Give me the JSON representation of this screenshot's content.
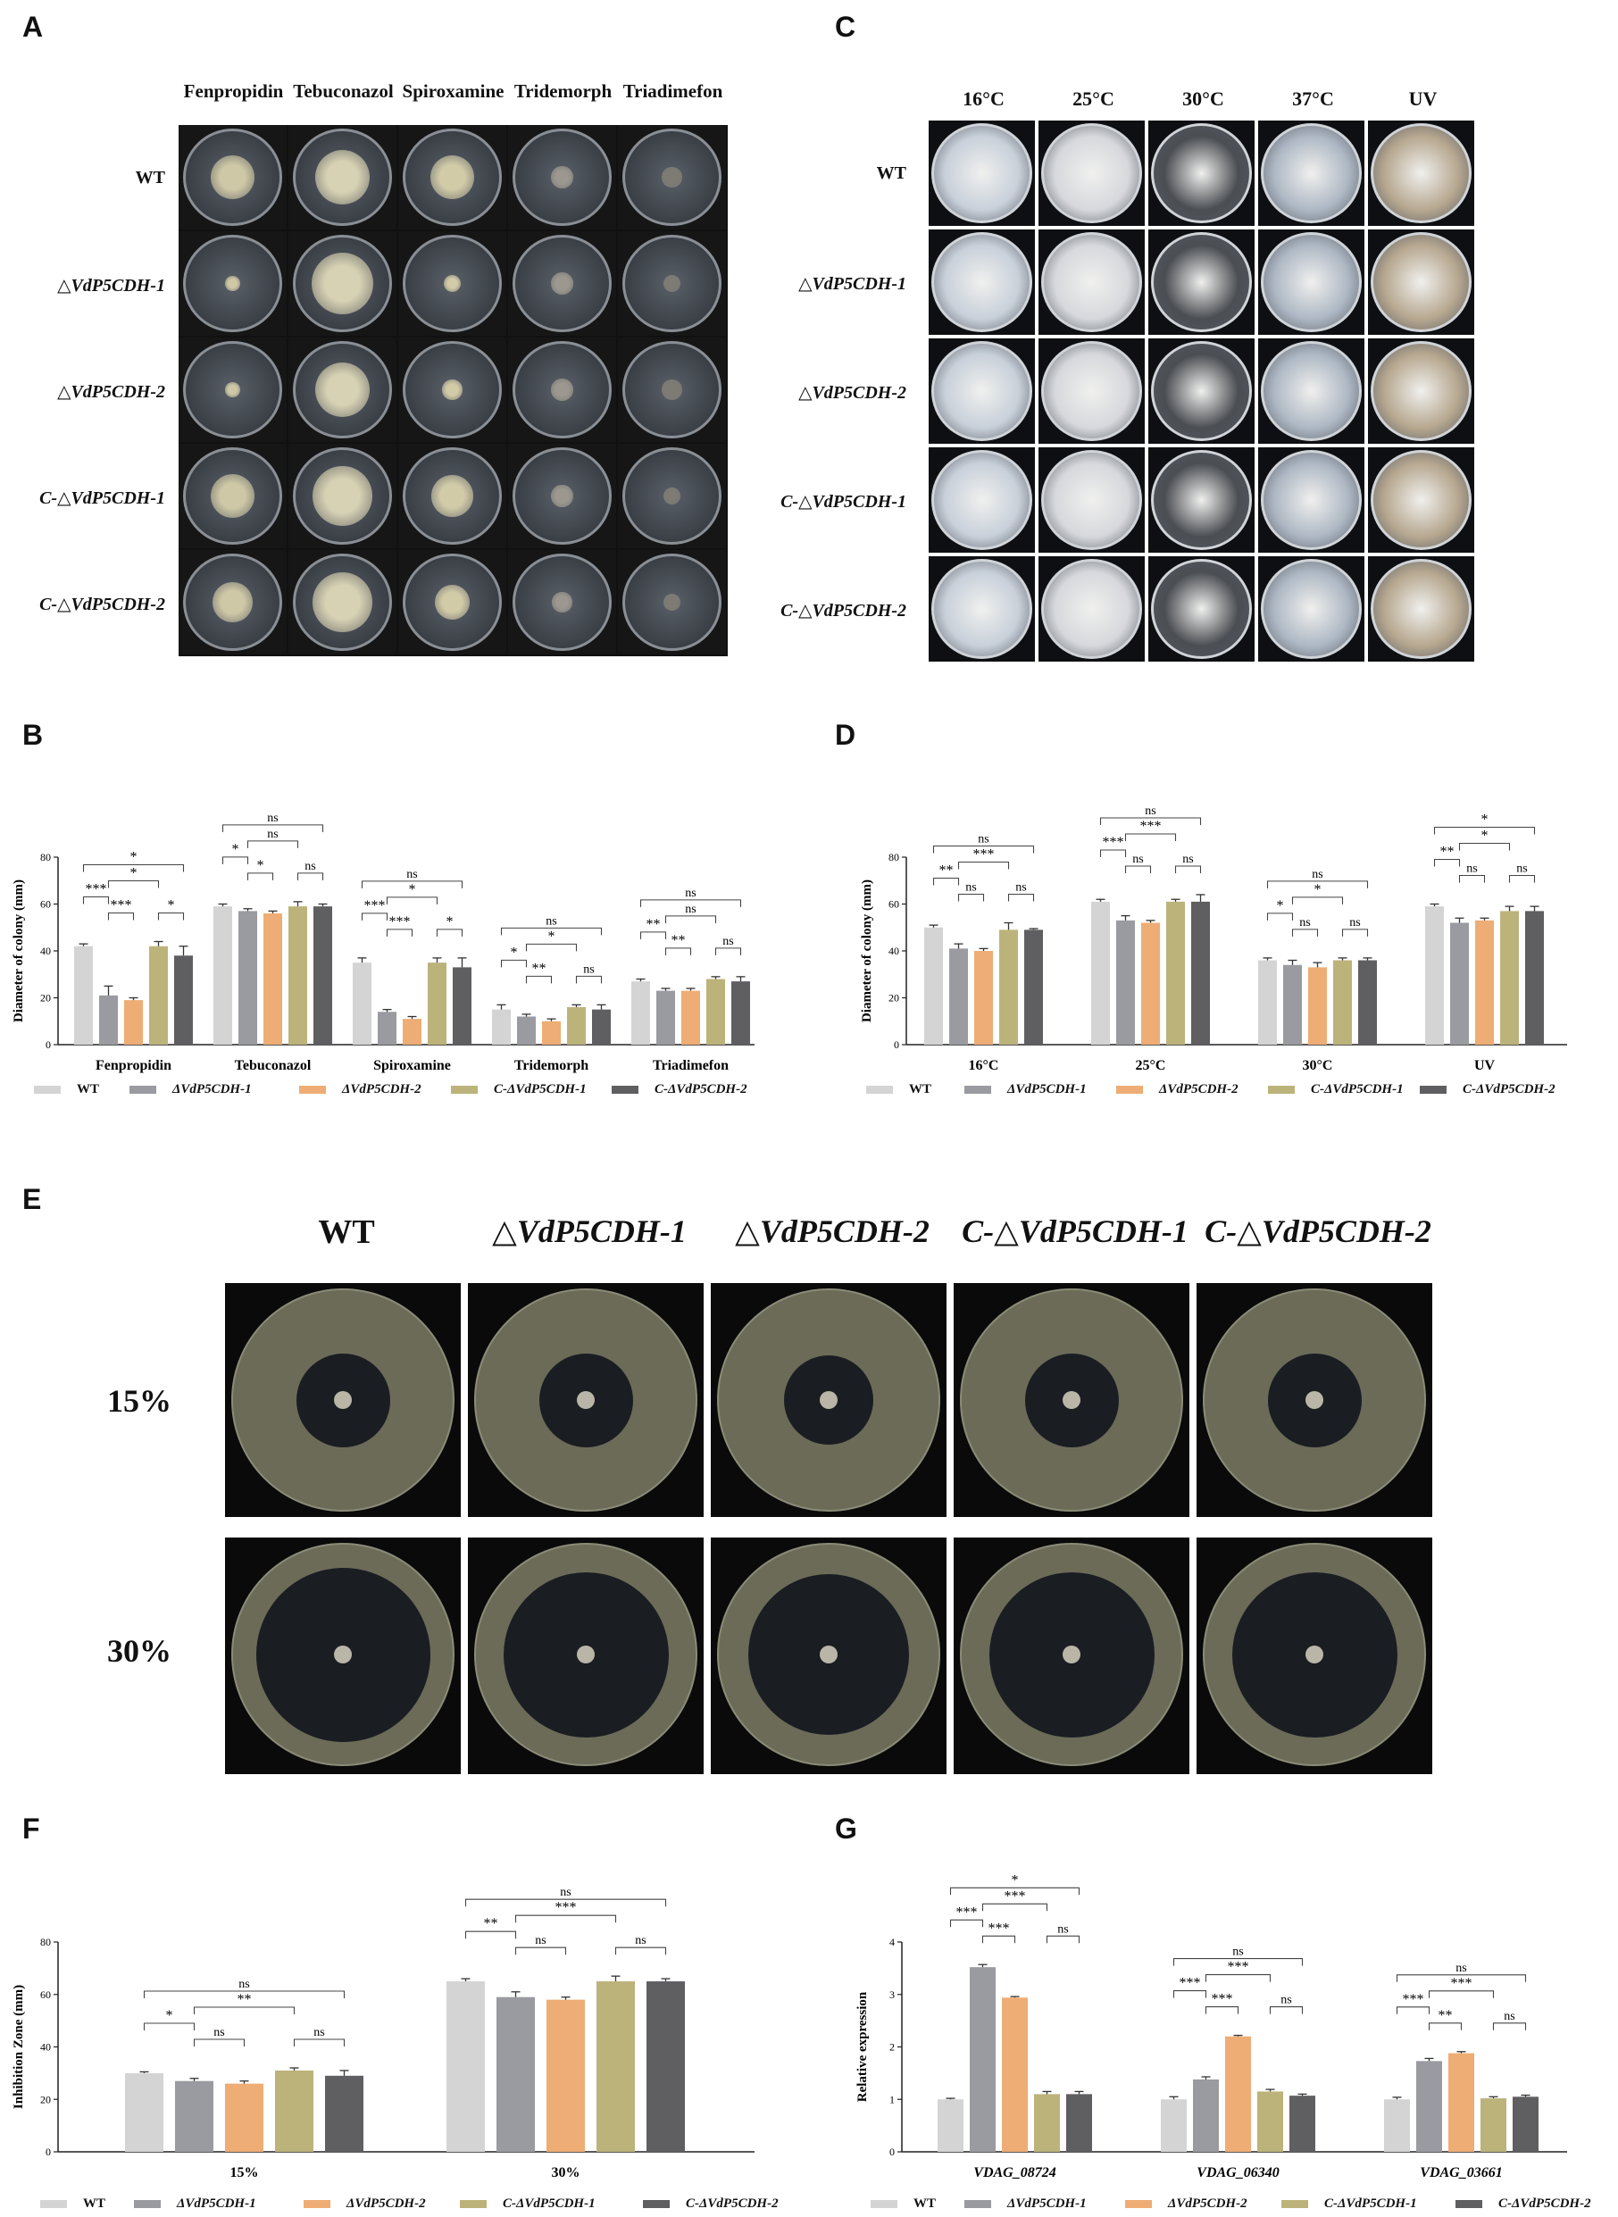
{
  "panels": {
    "A": {
      "letter": "A",
      "columns": [
        "Fenpropidin",
        "Tebuconazol",
        "Spiroxamine",
        "Tridemorph",
        "Triadimefon"
      ],
      "rows": [
        "WT",
        "△VdP5CDH-1",
        "△VdP5CDH-2",
        "C-△VdP5CDH-1",
        "C-△VdP5CDH-2"
      ]
    },
    "C": {
      "letter": "C",
      "columns": [
        "16°C",
        "25°C",
        "30°C",
        "37°C",
        "UV"
      ],
      "rows": [
        "WT",
        "△VdP5CDH-1",
        "△VdP5CDH-2",
        "C-△VdP5CDH-1",
        "C-△VdP5CDH-2"
      ]
    },
    "E": {
      "letter": "E",
      "columns": [
        "WT",
        "△VdP5CDH-1",
        "△VdP5CDH-2",
        "C-△VdP5CDH-1",
        "C-△VdP5CDH-2"
      ],
      "rows": [
        "15%",
        "30%"
      ]
    },
    "B": {
      "letter": "B"
    },
    "D": {
      "letter": "D"
    },
    "F": {
      "letter": "F"
    },
    "G": {
      "letter": "G"
    }
  },
  "legend": {
    "items": [
      "WT",
      "ΔVdP5CDH-1",
      "ΔVdP5CDH-2",
      "C-ΔVdP5CDH-1",
      "C-ΔVdP5CDH-2"
    ],
    "colors": [
      "#d4d4d4",
      "#9a9ba0",
      "#eead75",
      "#bcb37b",
      "#5f5f62"
    ]
  },
  "chart_data": [
    {
      "panel": "B",
      "type": "bar",
      "ylabel": "Diameter of colony (mm)",
      "ylim": [
        0,
        80
      ],
      "yticks": [
        "0",
        "20",
        "40",
        "60",
        "80"
      ],
      "categories": [
        "Fenpropidin",
        "Tebuconazol",
        "Spiroxamine",
        "Tridemorph",
        "Triadimefon"
      ],
      "series": [
        {
          "name": "WT",
          "values": [
            42,
            59,
            35,
            15,
            27
          ],
          "errors": [
            1,
            1,
            2,
            2,
            1
          ]
        },
        {
          "name": "ΔVdP5CDH-1",
          "values": [
            21,
            57,
            14,
            12,
            23
          ],
          "errors": [
            4,
            1,
            1,
            1,
            1
          ]
        },
        {
          "name": "ΔVdP5CDH-2",
          "values": [
            19,
            56,
            11,
            10,
            23
          ],
          "errors": [
            1,
            1,
            1,
            1,
            1
          ]
        },
        {
          "name": "C-ΔVdP5CDH-1",
          "values": [
            42,
            59,
            35,
            16,
            28
          ],
          "errors": [
            2,
            2,
            2,
            1,
            1
          ]
        },
        {
          "name": "C-ΔVdP5CDH-2",
          "values": [
            38,
            59,
            33,
            15,
            27
          ],
          "errors": [
            4,
            1,
            4,
            2,
            2
          ]
        }
      ],
      "annotations": [
        "*",
        "***",
        "*",
        "***",
        "*",
        "ns",
        "*",
        "ns",
        "*",
        "ns",
        "ns",
        "***",
        "*",
        "***",
        "*",
        "ns",
        "*",
        "*",
        "**",
        "ns",
        "ns",
        "**",
        "ns",
        "**",
        "ns"
      ]
    },
    {
      "panel": "D",
      "type": "bar",
      "ylabel": "Diameter of colony (mm)",
      "ylim": [
        0,
        80
      ],
      "yticks": [
        "0",
        "20",
        "40",
        "60",
        "80"
      ],
      "categories": [
        "16°C",
        "25°C",
        "30°C",
        "UV"
      ],
      "series": [
        {
          "name": "WT",
          "values": [
            50,
            61,
            36,
            59
          ],
          "errors": [
            1,
            1,
            1,
            1
          ]
        },
        {
          "name": "ΔVdP5CDH-1",
          "values": [
            41,
            53,
            34,
            52
          ],
          "errors": [
            2,
            2,
            2,
            2
          ]
        },
        {
          "name": "ΔVdP5CDH-2",
          "values": [
            40,
            52,
            33,
            53
          ],
          "errors": [
            1,
            1,
            2,
            1
          ]
        },
        {
          "name": "C-ΔVdP5CDH-1",
          "values": [
            49,
            61,
            36,
            57
          ],
          "errors": [
            3,
            1,
            1,
            2
          ]
        },
        {
          "name": "C-ΔVdP5CDH-2",
          "values": [
            49,
            61,
            36,
            57
          ],
          "errors": [
            0.5,
            3,
            1,
            2
          ]
        }
      ],
      "annotations": [
        "ns",
        "**",
        "***",
        "ns",
        "ns",
        "ns",
        "***",
        "***",
        "ns",
        "ns",
        "ns",
        "*",
        "*",
        "ns",
        "ns",
        "*",
        "**",
        "*",
        "ns",
        "ns"
      ]
    },
    {
      "panel": "F",
      "type": "bar",
      "ylabel": "Inhibition Zone (mm)",
      "ylim": [
        0,
        80
      ],
      "yticks": [
        "0",
        "20",
        "40",
        "60",
        "80"
      ],
      "categories": [
        "15%",
        "30%"
      ],
      "series": [
        {
          "name": "WT",
          "values": [
            30,
            65
          ],
          "errors": [
            0.5,
            1
          ]
        },
        {
          "name": "ΔVdP5CDH-1",
          "values": [
            27,
            59
          ],
          "errors": [
            1,
            2
          ]
        },
        {
          "name": "ΔVdP5CDH-2",
          "values": [
            26,
            58
          ],
          "errors": [
            1,
            1
          ]
        },
        {
          "name": "C-ΔVdP5CDH-1",
          "values": [
            31,
            65
          ],
          "errors": [
            1,
            2
          ]
        },
        {
          "name": "C-ΔVdP5CDH-2",
          "values": [
            29,
            65
          ],
          "errors": [
            2,
            1
          ]
        }
      ],
      "annotations": [
        "ns",
        "*",
        "**",
        "ns",
        "ns",
        "ns",
        "**",
        "***",
        "ns",
        "ns"
      ]
    },
    {
      "panel": "G",
      "type": "bar",
      "ylabel": "Relative expression",
      "ylim": [
        0,
        4
      ],
      "yticks": [
        "0",
        "1",
        "2",
        "3",
        "4"
      ],
      "categories": [
        "VDAG_08724",
        "VDAG_06340",
        "VDAG_03661"
      ],
      "series": [
        {
          "name": "WT",
          "values": [
            1.0,
            1.0,
            1.0
          ],
          "errors": [
            0.02,
            0.05,
            0.04
          ]
        },
        {
          "name": "ΔVdP5CDH-1",
          "values": [
            3.52,
            1.38,
            1.73
          ],
          "errors": [
            0.05,
            0.05,
            0.05
          ]
        },
        {
          "name": "ΔVdP5CDH-2",
          "values": [
            2.94,
            2.2,
            1.88
          ],
          "errors": [
            0.02,
            0.02,
            0.03
          ]
        },
        {
          "name": "C-ΔVdP5CDH-1",
          "values": [
            1.1,
            1.15,
            1.02
          ],
          "errors": [
            0.05,
            0.04,
            0.03
          ]
        },
        {
          "name": "C-ΔVdP5CDH-2",
          "values": [
            1.1,
            1.07,
            1.05
          ],
          "errors": [
            0.05,
            0.03,
            0.03
          ]
        }
      ],
      "annotations": [
        "*",
        "***",
        "***",
        "***",
        "ns",
        "ns",
        "***",
        "***",
        "***",
        "ns",
        "ns",
        "***",
        "***",
        "**",
        "ns"
      ]
    }
  ]
}
